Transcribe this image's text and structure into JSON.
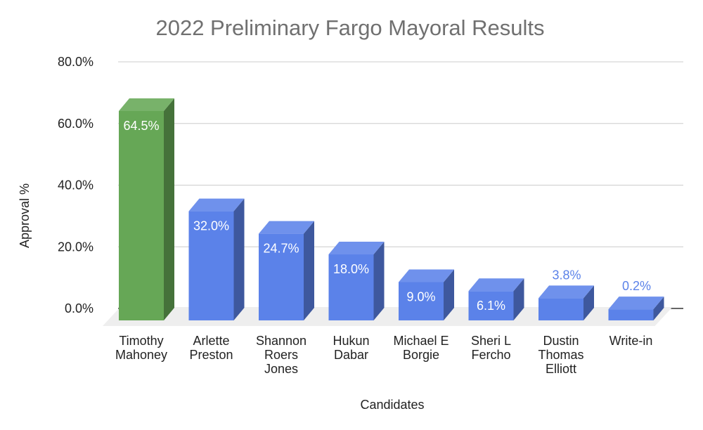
{
  "chart_data": {
    "type": "bar",
    "style": "3d",
    "title": "2022 Preliminary Fargo Mayoral Results",
    "xlabel": "Candidates",
    "ylabel": "Approval %",
    "ylim": [
      0,
      80
    ],
    "yticks": [
      "0.0%",
      "20.0%",
      "40.0%",
      "60.0%",
      "80.0%"
    ],
    "grid": true,
    "legend": "none",
    "categories": [
      [
        "Timothy",
        "Mahoney"
      ],
      [
        "Arlette",
        "Preston"
      ],
      [
        "Shannon",
        "Roers",
        "Jones"
      ],
      [
        "Hukun",
        "Dabar"
      ],
      [
        "Michael E",
        "Borgie"
      ],
      [
        "Sheri L",
        "Fercho"
      ],
      [
        "Dustin",
        "Thomas",
        "Elliott"
      ],
      [
        "Write-in"
      ]
    ],
    "values": [
      64.5,
      32.0,
      24.7,
      18.0,
      9.0,
      6.1,
      3.8,
      0.2
    ],
    "data_labels": [
      "64.5%",
      "32.0%",
      "24.7%",
      "18.0%",
      "9.0%",
      "6.1%",
      "3.8%",
      "0.2%"
    ],
    "colors": {
      "highlight": "#66a756",
      "default": "#5b82e9",
      "grid": "#cccccc",
      "zero_line": "#333333",
      "floor": "#eeeeee",
      "outside_label": "#5b82e9"
    },
    "highlight_index": 0
  }
}
